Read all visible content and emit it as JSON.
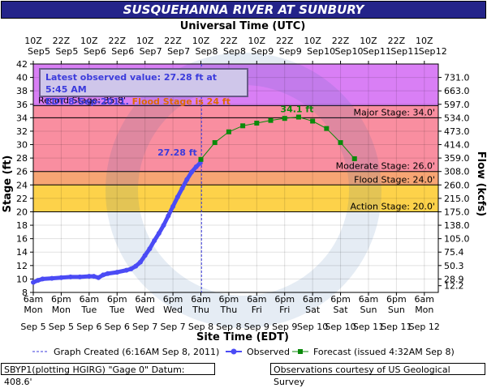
{
  "title": "SUSQUEHANNA RIVER AT SUNBURY",
  "top_axis_title": "Universal Time (UTC)",
  "bottom_axis_title": "Site Time (EDT)",
  "left_axis_title": "Stage (ft)",
  "right_axis_title": "Flow (kcfs)",
  "info": {
    "line1": "Latest observed value: 27.28 ft at 5:45 AM",
    "line2_a": "EDT 8-Sep-2011. ",
    "line2_b": "Flood Stage is 24 ft"
  },
  "legend": {
    "created": "Graph Created (6:16AM Sep 8, 2011)",
    "observed": "Observed",
    "forecast": "Forecast (issued 4:32AM Sep 8)"
  },
  "footer": {
    "left": "SBYP1(plotting HGIRG) \"Gage 0\" Datum: 408.6'",
    "right": "Observations courtesy of US Geological Survey"
  },
  "colors": {
    "title_bg": "#24248a",
    "record": "#d97ff5",
    "major": "#f98ea0",
    "moderate": "#f7a574",
    "flood": "#fdd24a",
    "action": "#fbfb7b",
    "observed": "#4b4bf5",
    "forecast": "#0a8a0a"
  },
  "chart_data": {
    "type": "line",
    "x_unit": "hours since 6am Mon Sep 5 2011 (EDT)",
    "xlim": [
      0,
      174
    ],
    "ylim": [
      8,
      42
    ],
    "y_ticks": [
      8,
      10,
      12,
      14,
      16,
      18,
      20,
      22,
      24,
      26,
      28,
      30,
      32,
      34,
      36,
      38,
      40,
      42
    ],
    "flow_ticks": [
      {
        "stage": 9,
        "label": "12.2"
      },
      {
        "stage": 10,
        "label": "28.9"
      },
      {
        "stage": 12,
        "label": "50.3"
      },
      {
        "stage": 14,
        "label": "75.4"
      },
      {
        "stage": 16,
        "label": "105.0"
      },
      {
        "stage": 18,
        "label": "138.0"
      },
      {
        "stage": 20,
        "label": "175.0"
      },
      {
        "stage": 22,
        "label": "215.0"
      },
      {
        "stage": 24,
        "label": "260.0"
      },
      {
        "stage": 26,
        "label": "308.0"
      },
      {
        "stage": 28,
        "label": "359.0"
      },
      {
        "stage": 30,
        "label": "414.0"
      },
      {
        "stage": 32,
        "label": "473.0"
      },
      {
        "stage": 34,
        "label": "534.0"
      },
      {
        "stage": 36,
        "label": "597.0"
      },
      {
        "stage": 38,
        "label": "663.0"
      },
      {
        "stage": 40,
        "label": "731.0"
      }
    ],
    "bottom_ticks": [
      {
        "h": 0,
        "l1": "6am",
        "l2": "Mon"
      },
      {
        "h": 12,
        "l1": "6pm",
        "l2": "Mon"
      },
      {
        "h": 24,
        "l1": "6am",
        "l2": "Tue"
      },
      {
        "h": 36,
        "l1": "6pm",
        "l2": "Tue"
      },
      {
        "h": 48,
        "l1": "6am",
        "l2": "Wed"
      },
      {
        "h": 60,
        "l1": "6pm",
        "l2": "Wed"
      },
      {
        "h": 72,
        "l1": "6am",
        "l2": "Thu"
      },
      {
        "h": 84,
        "l1": "6pm",
        "l2": "Thu"
      },
      {
        "h": 96,
        "l1": "6am",
        "l2": "Fri"
      },
      {
        "h": 108,
        "l1": "6pm",
        "l2": "Fri"
      },
      {
        "h": 120,
        "l1": "6am",
        "l2": "Sat"
      },
      {
        "h": 132,
        "l1": "6pm",
        "l2": "Sat"
      },
      {
        "h": 144,
        "l1": "6am",
        "l2": "Sun"
      },
      {
        "h": 156,
        "l1": "6pm",
        "l2": "Sun"
      },
      {
        "h": 168,
        "l1": "6am",
        "l2": "Mon"
      }
    ],
    "bottom_dates": [
      {
        "h": 0,
        "l": "Sep 5"
      },
      {
        "h": 12,
        "l": "Sep 5"
      },
      {
        "h": 24,
        "l": "Sep 6"
      },
      {
        "h": 36,
        "l": "Sep 6"
      },
      {
        "h": 48,
        "l": "Sep 7"
      },
      {
        "h": 60,
        "l": "Sep 7"
      },
      {
        "h": 72,
        "l": "Sep 8"
      },
      {
        "h": 84,
        "l": "Sep 8"
      },
      {
        "h": 96,
        "l": "Sep 9"
      },
      {
        "h": 108,
        "l": "Sep 9"
      },
      {
        "h": 120,
        "l": "Sep 10"
      },
      {
        "h": 132,
        "l": "Sep 10"
      },
      {
        "h": 144,
        "l": "Sep 11"
      },
      {
        "h": 156,
        "l": "Sep 11"
      },
      {
        "h": 168,
        "l": "Sep 12"
      }
    ],
    "top_ticks": [
      {
        "h": 0,
        "l1": "10Z",
        "l2": "Sep"
      },
      {
        "h": 12,
        "l1": "22Z",
        "l2": "Sep"
      },
      {
        "h": 24,
        "l1": "10Z",
        "l2": "Sep"
      },
      {
        "h": 36,
        "l1": "22Z",
        "l2": "Sep"
      },
      {
        "h": 48,
        "l1": "10Z",
        "l2": "Sep"
      },
      {
        "h": 60,
        "l1": "22Z",
        "l2": "Sep"
      },
      {
        "h": 72,
        "l1": "10Z",
        "l2": "Sep"
      },
      {
        "h": 84,
        "l1": "22Z",
        "l2": "Sep"
      },
      {
        "h": 96,
        "l1": "10Z",
        "l2": "Sep"
      },
      {
        "h": 108,
        "l1": "22Z",
        "l2": "Sep"
      },
      {
        "h": 120,
        "l1": "10Z",
        "l2": "Sep"
      },
      {
        "h": 132,
        "l1": "22Z",
        "l2": "Sep"
      },
      {
        "h": 144,
        "l1": "10Z",
        "l2": "Sep"
      },
      {
        "h": 156,
        "l1": "22Z",
        "l2": "Sep"
      },
      {
        "h": 168,
        "l1": "10Z",
        "l2": "Sep"
      }
    ],
    "top_dates": [
      "5",
      "5",
      "6",
      "6",
      "7",
      "7",
      "8",
      "8",
      "9",
      "9",
      "10",
      "10",
      "11",
      "11",
      "12"
    ],
    "stage_bands": [
      {
        "name": "Record Stage: 35.8'",
        "from": 35.8,
        "to": 42,
        "color": "#d97ff5",
        "label_side": "left"
      },
      {
        "name": "Major Stage: 34.0'",
        "from": 34,
        "to": 35.8,
        "color": "#f98ea0",
        "label_side": "right"
      },
      {
        "name": "",
        "from": 26,
        "to": 34,
        "color": "#f98ea0",
        "label_side": "none"
      },
      {
        "name": "Moderate Stage: 26.0'",
        "from": 24,
        "to": 26,
        "color": "#f7a574",
        "label_side": "right",
        "label_at": 26
      },
      {
        "name": "Flood Stage: 24.0'",
        "from": 20,
        "to": 24,
        "color": "#fdd24a",
        "label_side": "right",
        "label_at": 24
      },
      {
        "name": "Action Stage: 20.0'",
        "from": 8,
        "to": 20,
        "color": "#ffffff",
        "label_side": "right",
        "label_at": 20
      }
    ],
    "graph_created_h": 72.27,
    "observed": {
      "name": "Observed",
      "points": [
        [
          0,
          9.5
        ],
        [
          2,
          9.8
        ],
        [
          4,
          10.0
        ],
        [
          8,
          10.1
        ],
        [
          12,
          10.2
        ],
        [
          16,
          10.3
        ],
        [
          20,
          10.3
        ],
        [
          24,
          10.4
        ],
        [
          26,
          10.4
        ],
        [
          28,
          10.2
        ],
        [
          30,
          10.6
        ],
        [
          32,
          10.8
        ],
        [
          36,
          11.0
        ],
        [
          40,
          11.3
        ],
        [
          42,
          11.5
        ],
        [
          44,
          11.9
        ],
        [
          46,
          12.5
        ],
        [
          48,
          13.5
        ],
        [
          50,
          14.5
        ],
        [
          52,
          15.7
        ],
        [
          54,
          16.8
        ],
        [
          56,
          18.0
        ],
        [
          58,
          19.4
        ],
        [
          60,
          20.8
        ],
        [
          62,
          22.2
        ],
        [
          64,
          23.5
        ],
        [
          66,
          24.8
        ],
        [
          68,
          25.9
        ],
        [
          70,
          26.7
        ],
        [
          71.75,
          27.28
        ]
      ],
      "last_label": "27.28 ft"
    },
    "forecast": {
      "name": "Forecast (issued 4:32AM Sep 8)",
      "points": [
        [
          72,
          27.8
        ],
        [
          78,
          30.3
        ],
        [
          84,
          31.9
        ],
        [
          90,
          32.8
        ],
        [
          96,
          33.2
        ],
        [
          102,
          33.6
        ],
        [
          108,
          33.9
        ],
        [
          114,
          34.1
        ],
        [
          120,
          33.5
        ],
        [
          126,
          32.4
        ],
        [
          132,
          30.3
        ],
        [
          138,
          27.9
        ]
      ],
      "peak_label": "34.1 ft",
      "peak_h": 114
    }
  }
}
